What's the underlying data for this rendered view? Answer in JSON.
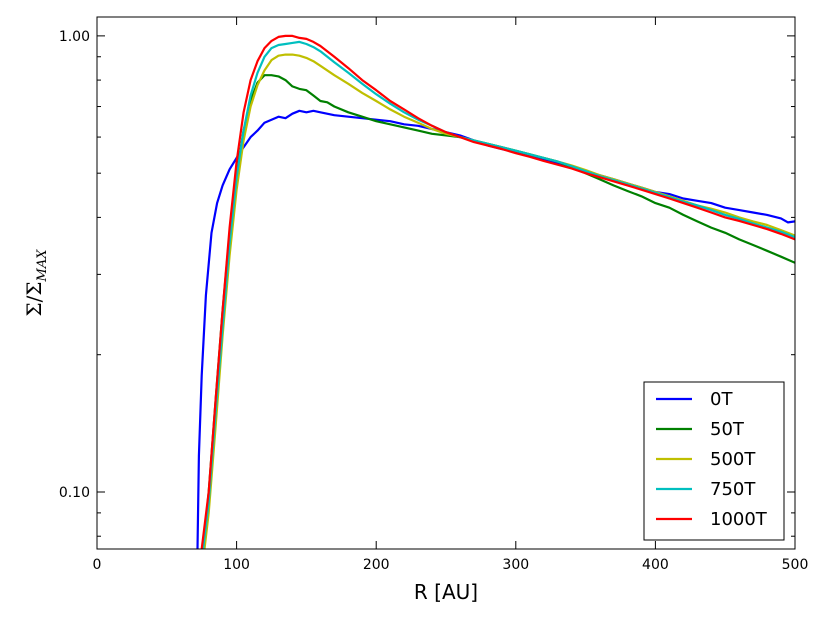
{
  "chart_data": {
    "type": "line",
    "title": "",
    "xlabel": "R [AU]",
    "ylabel": {
      "base": "Σ/Σ",
      "sub": "MAX"
    },
    "xlim": [
      0,
      500
    ],
    "ylim": [
      0.075,
      1.1
    ],
    "yscale": "log",
    "xticks": [
      0,
      100,
      200,
      300,
      400,
      500
    ],
    "xtick_labels": [
      "0",
      "100",
      "200",
      "300",
      "400",
      "500"
    ],
    "yticks": [
      0.1,
      1.0
    ],
    "ytick_labels": [
      "0.10",
      "1.00"
    ],
    "grid": false,
    "legend_position": "lower-right",
    "series": [
      {
        "name": "0T",
        "color": "#0000ff",
        "x": [
          72,
          73,
          75,
          78,
          82,
          86,
          90,
          95,
          100,
          105,
          110,
          115,
          120,
          125,
          130,
          135,
          140,
          145,
          150,
          155,
          160,
          170,
          180,
          190,
          200,
          210,
          220,
          230,
          240,
          250,
          260,
          270,
          280,
          290,
          300,
          310,
          320,
          330,
          340,
          350,
          360,
          370,
          380,
          390,
          400,
          410,
          420,
          430,
          440,
          450,
          460,
          470,
          480,
          490,
          495,
          500
        ],
        "y": [
          0.075,
          0.12,
          0.18,
          0.27,
          0.37,
          0.43,
          0.47,
          0.51,
          0.54,
          0.57,
          0.6,
          0.62,
          0.645,
          0.655,
          0.665,
          0.66,
          0.675,
          0.685,
          0.68,
          0.685,
          0.68,
          0.67,
          0.665,
          0.66,
          0.655,
          0.65,
          0.64,
          0.635,
          0.625,
          0.615,
          0.605,
          0.59,
          0.575,
          0.565,
          0.555,
          0.545,
          0.535,
          0.525,
          0.515,
          0.505,
          0.495,
          0.485,
          0.475,
          0.465,
          0.455,
          0.45,
          0.44,
          0.435,
          0.43,
          0.42,
          0.415,
          0.41,
          0.405,
          0.398,
          0.39,
          0.392
        ]
      },
      {
        "name": "50T",
        "color": "#008000",
        "x": [
          76,
          80,
          85,
          90,
          95,
          100,
          105,
          110,
          115,
          120,
          125,
          130,
          135,
          140,
          145,
          150,
          155,
          160,
          165,
          170,
          180,
          190,
          200,
          210,
          220,
          230,
          240,
          250,
          260,
          270,
          280,
          290,
          300,
          310,
          320,
          330,
          340,
          350,
          360,
          370,
          380,
          390,
          400,
          410,
          420,
          430,
          440,
          450,
          460,
          470,
          480,
          490,
          500
        ],
        "y": [
          0.075,
          0.1,
          0.16,
          0.25,
          0.37,
          0.5,
          0.62,
          0.72,
          0.79,
          0.82,
          0.82,
          0.815,
          0.8,
          0.775,
          0.765,
          0.76,
          0.74,
          0.72,
          0.715,
          0.7,
          0.68,
          0.665,
          0.65,
          0.64,
          0.63,
          0.62,
          0.61,
          0.605,
          0.6,
          0.59,
          0.58,
          0.57,
          0.56,
          0.55,
          0.54,
          0.53,
          0.515,
          0.5,
          0.485,
          0.47,
          0.457,
          0.445,
          0.43,
          0.42,
          0.405,
          0.392,
          0.38,
          0.37,
          0.358,
          0.348,
          0.338,
          0.328,
          0.318
        ]
      },
      {
        "name": "500T",
        "color": "#bfbf00",
        "x": [
          77,
          80,
          85,
          90,
          95,
          100,
          105,
          110,
          115,
          120,
          125,
          130,
          135,
          140,
          145,
          150,
          155,
          160,
          170,
          180,
          190,
          200,
          210,
          220,
          230,
          240,
          250,
          260,
          270,
          280,
          290,
          300,
          310,
          320,
          330,
          340,
          350,
          360,
          370,
          380,
          390,
          400,
          410,
          420,
          430,
          440,
          450,
          460,
          470,
          480,
          490,
          500
        ],
        "y": [
          0.075,
          0.09,
          0.14,
          0.22,
          0.33,
          0.46,
          0.59,
          0.7,
          0.78,
          0.84,
          0.885,
          0.905,
          0.91,
          0.91,
          0.905,
          0.895,
          0.88,
          0.86,
          0.82,
          0.785,
          0.75,
          0.72,
          0.69,
          0.665,
          0.645,
          0.625,
          0.61,
          0.6,
          0.59,
          0.58,
          0.57,
          0.56,
          0.55,
          0.54,
          0.53,
          0.52,
          0.508,
          0.495,
          0.485,
          0.475,
          0.465,
          0.455,
          0.445,
          0.435,
          0.425,
          0.418,
          0.41,
          0.4,
          0.392,
          0.385,
          0.375,
          0.365
        ]
      },
      {
        "name": "750T",
        "color": "#00bfbf",
        "x": [
          76,
          80,
          85,
          90,
          95,
          100,
          105,
          110,
          115,
          120,
          125,
          130,
          135,
          140,
          145,
          150,
          155,
          160,
          170,
          180,
          190,
          200,
          210,
          220,
          230,
          240,
          250,
          260,
          270,
          280,
          290,
          300,
          310,
          320,
          330,
          340,
          350,
          360,
          370,
          380,
          390,
          400,
          410,
          420,
          430,
          440,
          450,
          460,
          470,
          480,
          490,
          500
        ],
        "y": [
          0.075,
          0.095,
          0.15,
          0.23,
          0.35,
          0.49,
          0.62,
          0.74,
          0.83,
          0.9,
          0.94,
          0.955,
          0.96,
          0.965,
          0.97,
          0.96,
          0.945,
          0.925,
          0.875,
          0.83,
          0.785,
          0.745,
          0.71,
          0.68,
          0.655,
          0.635,
          0.615,
          0.6,
          0.59,
          0.58,
          0.57,
          0.56,
          0.55,
          0.54,
          0.53,
          0.518,
          0.505,
          0.493,
          0.483,
          0.473,
          0.463,
          0.453,
          0.443,
          0.433,
          0.425,
          0.415,
          0.405,
          0.397,
          0.388,
          0.38,
          0.372,
          0.362
        ]
      },
      {
        "name": "1000T",
        "color": "#ff0000",
        "x": [
          75,
          80,
          85,
          90,
          95,
          100,
          105,
          110,
          115,
          120,
          125,
          130,
          135,
          140,
          145,
          150,
          155,
          160,
          170,
          180,
          190,
          200,
          210,
          220,
          230,
          240,
          250,
          260,
          270,
          280,
          290,
          300,
          310,
          320,
          330,
          340,
          350,
          360,
          370,
          380,
          390,
          400,
          410,
          420,
          430,
          440,
          450,
          460,
          470,
          480,
          490,
          500
        ],
        "y": [
          0.075,
          0.1,
          0.16,
          0.25,
          0.38,
          0.53,
          0.68,
          0.8,
          0.88,
          0.94,
          0.975,
          0.995,
          1.0,
          1.0,
          0.99,
          0.985,
          0.97,
          0.95,
          0.9,
          0.85,
          0.8,
          0.76,
          0.72,
          0.69,
          0.66,
          0.635,
          0.615,
          0.6,
          0.585,
          0.575,
          0.565,
          0.553,
          0.543,
          0.532,
          0.522,
          0.512,
          0.5,
          0.49,
          0.48,
          0.47,
          0.46,
          0.45,
          0.44,
          0.43,
          0.42,
          0.41,
          0.4,
          0.393,
          0.385,
          0.377,
          0.368,
          0.358
        ]
      }
    ]
  }
}
